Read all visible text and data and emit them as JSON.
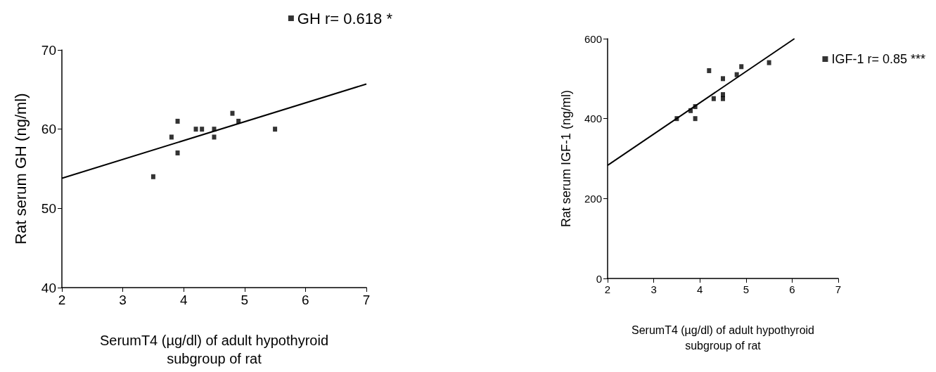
{
  "chart_data": [
    {
      "type": "scatter",
      "xlabel": "SerumT4 (µg/dl) of adult hypothyroid\nsubgroup of rat",
      "ylabel": "Rat serum GH (ng/ml)",
      "xlim": [
        2,
        7
      ],
      "xticks": [
        2,
        3,
        4,
        5,
        6,
        7
      ],
      "ylim": [
        40,
        70
      ],
      "yticks": [
        40,
        50,
        60,
        70
      ],
      "grid": false,
      "legend": "top right",
      "series": [
        {
          "name": "GH r= 0.618 *",
          "color": "#000000",
          "marker": "square",
          "x": [
            3.5,
            3.8,
            3.9,
            3.9,
            4.2,
            4.3,
            4.5,
            4.5,
            4.8,
            4.9,
            5.5
          ],
          "values": [
            54,
            59,
            61,
            57,
            60,
            60,
            60,
            59,
            62,
            61,
            60
          ]
        },
        {
          "type": "line",
          "color": "#000000",
          "marker": "none",
          "line_style": "solid",
          "x": [
            2,
            7
          ],
          "values": [
            53.8,
            65.7
          ]
        }
      ]
    },
    {
      "type": "scatter",
      "xlabel": "SerumT4 (µg/dl) of adult hypothyroid\nsubgroup of rat",
      "ylabel": "Rat serum IGF-1 (ng/ml)",
      "xlim": [
        2,
        7
      ],
      "xticks": [
        2,
        3,
        4,
        5,
        6,
        7
      ],
      "ylim": [
        0,
        600
      ],
      "yticks": [
        0,
        200,
        400,
        600
      ],
      "grid": false,
      "legend": "right",
      "series": [
        {
          "name": "IGF-1 r= 0.85 ***",
          "color": "#000000",
          "marker": "square",
          "x": [
            3.5,
            3.8,
            3.9,
            3.9,
            4.2,
            4.3,
            4.5,
            4.5,
            4.5,
            4.8,
            4.9,
            5.5
          ],
          "values": [
            400,
            420,
            430,
            400,
            520,
            450,
            500,
            460,
            450,
            510,
            530,
            540
          ]
        },
        {
          "type": "line",
          "color": "#000000",
          "marker": "none",
          "line_style": "solid",
          "x": [
            2,
            6.05
          ],
          "values": [
            283,
            600
          ]
        }
      ]
    }
  ]
}
